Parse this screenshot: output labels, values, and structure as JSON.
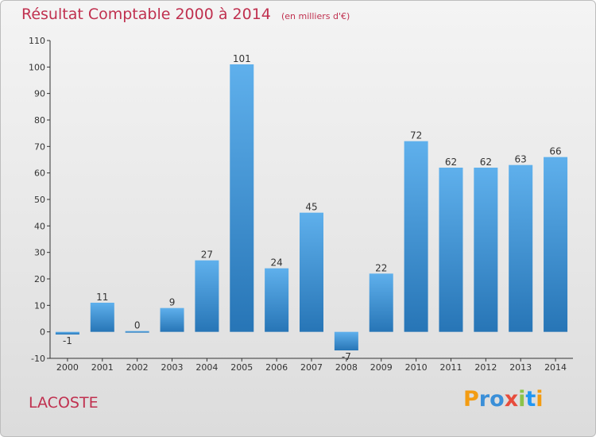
{
  "title": "Résultat Comptable 2000 à 2014",
  "subtitle": "(en milliers d'€)",
  "commune": "LACOSTE",
  "brand": "Proxiti",
  "colors": {
    "title": "#c0304f",
    "bar_top": "#5fb0ec",
    "bar_bottom": "#2775b6",
    "axis": "#333333",
    "grid": "#d0d0d0",
    "brand_letters": [
      "#f39c12",
      "#3a8fd8",
      "#3a8fd8",
      "#e74c3c",
      "#8bc34a",
      "#2196f3",
      "#f39c12"
    ]
  },
  "chart_data": {
    "type": "bar",
    "categories": [
      "2000",
      "2001",
      "2002",
      "2003",
      "2004",
      "2005",
      "2006",
      "2007",
      "2008",
      "2009",
      "2010",
      "2011",
      "2012",
      "2013",
      "2014"
    ],
    "values": [
      -1,
      11,
      0,
      9,
      27,
      101,
      24,
      45,
      -7,
      22,
      72,
      62,
      62,
      63,
      66
    ],
    "ylim": [
      -10,
      110
    ],
    "yticks": [
      -10,
      0,
      10,
      20,
      30,
      40,
      50,
      60,
      70,
      80,
      90,
      100,
      110
    ],
    "xlabel": "",
    "ylabel": "",
    "grid": false,
    "legend": "none"
  }
}
